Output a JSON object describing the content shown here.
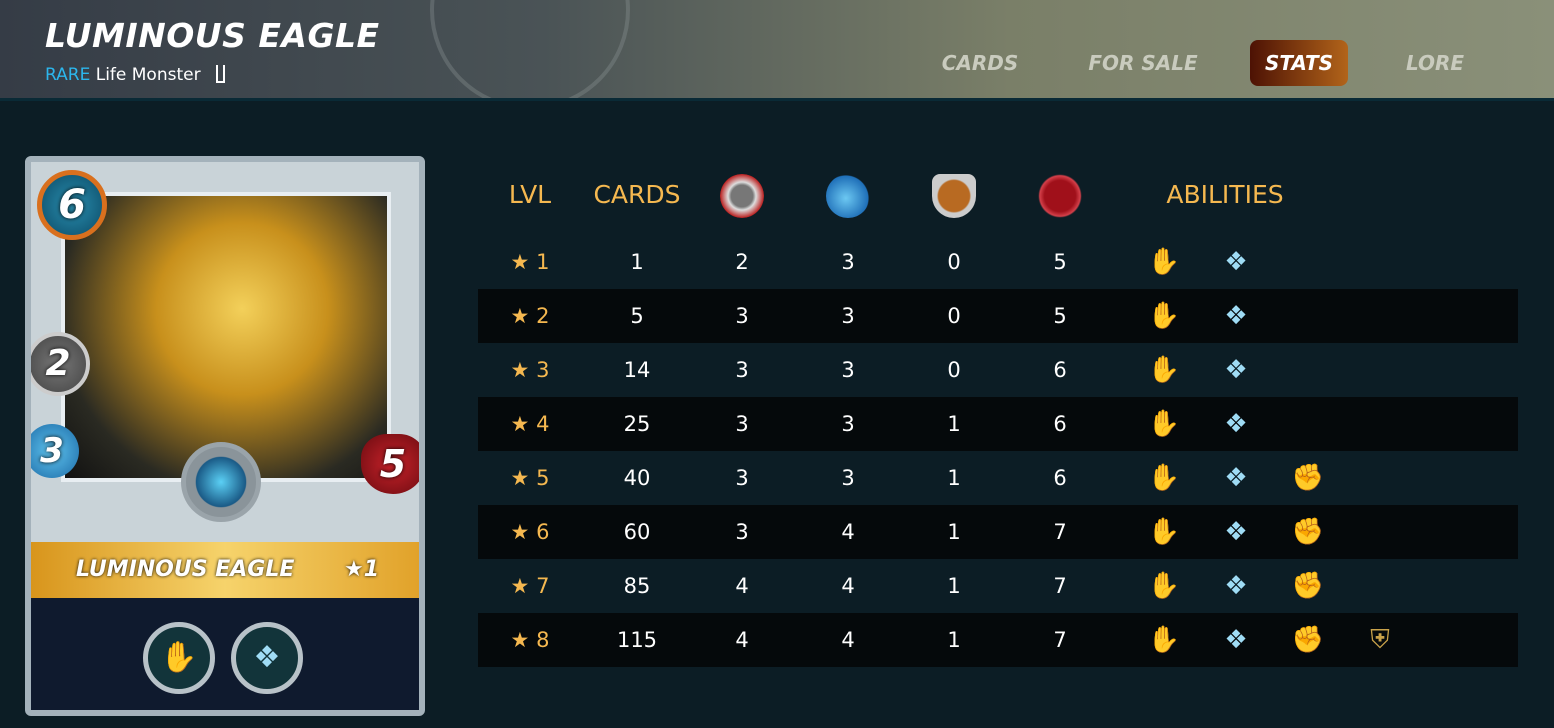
{
  "header": {
    "title": "LUMINOUS EAGLE",
    "rarity": "RARE",
    "subtitle": "Life Monster",
    "edition_icon": "edition-icon"
  },
  "tabs": [
    {
      "label": "CARDS",
      "active": false
    },
    {
      "label": "FOR SALE",
      "active": false
    },
    {
      "label": "STATS",
      "active": true
    },
    {
      "label": "LORE",
      "active": false
    }
  ],
  "card": {
    "name": "LUMINOUS EAGLE",
    "level": "★1",
    "mana": "6",
    "magic": "2",
    "speed": "3",
    "health": "5",
    "abilities": [
      "green-claw-icon",
      "blue-wings-icon"
    ]
  },
  "table": {
    "headers": {
      "lvl": "LVL",
      "cards": "CARDS",
      "magic_icon": "magic-attack-icon",
      "speed_icon": "speed-icon",
      "armor_icon": "armor-icon",
      "health_icon": "health-icon",
      "abilities": "ABILITIES"
    },
    "rows": [
      {
        "lvl": "1",
        "cards": "1",
        "magic": "2",
        "speed": "3",
        "armor": "0",
        "health": "5",
        "abilities": [
          "green-claw",
          "blue-wings"
        ]
      },
      {
        "lvl": "2",
        "cards": "5",
        "magic": "3",
        "speed": "3",
        "armor": "0",
        "health": "5",
        "abilities": [
          "green-claw",
          "blue-wings"
        ]
      },
      {
        "lvl": "3",
        "cards": "14",
        "magic": "3",
        "speed": "3",
        "armor": "0",
        "health": "6",
        "abilities": [
          "green-claw",
          "blue-wings"
        ]
      },
      {
        "lvl": "4",
        "cards": "25",
        "magic": "3",
        "speed": "3",
        "armor": "1",
        "health": "6",
        "abilities": [
          "green-claw",
          "blue-wings"
        ]
      },
      {
        "lvl": "5",
        "cards": "40",
        "magic": "3",
        "speed": "3",
        "armor": "1",
        "health": "6",
        "abilities": [
          "green-claw",
          "blue-wings",
          "red-fist"
        ]
      },
      {
        "lvl": "6",
        "cards": "60",
        "magic": "3",
        "speed": "4",
        "armor": "1",
        "health": "7",
        "abilities": [
          "green-claw",
          "blue-wings",
          "red-fist"
        ]
      },
      {
        "lvl": "7",
        "cards": "85",
        "magic": "4",
        "speed": "4",
        "armor": "1",
        "health": "7",
        "abilities": [
          "green-claw",
          "blue-wings",
          "red-fist"
        ]
      },
      {
        "lvl": "8",
        "cards": "115",
        "magic": "4",
        "speed": "4",
        "armor": "1",
        "health": "7",
        "abilities": [
          "green-claw",
          "blue-wings",
          "red-fist",
          "shield-emblem"
        ]
      }
    ]
  },
  "colors": {
    "accent": "#f5b850",
    "rarity": "#2cb6ec",
    "active_tab_start": "#4d1204",
    "active_tab_end": "#b2641a"
  }
}
